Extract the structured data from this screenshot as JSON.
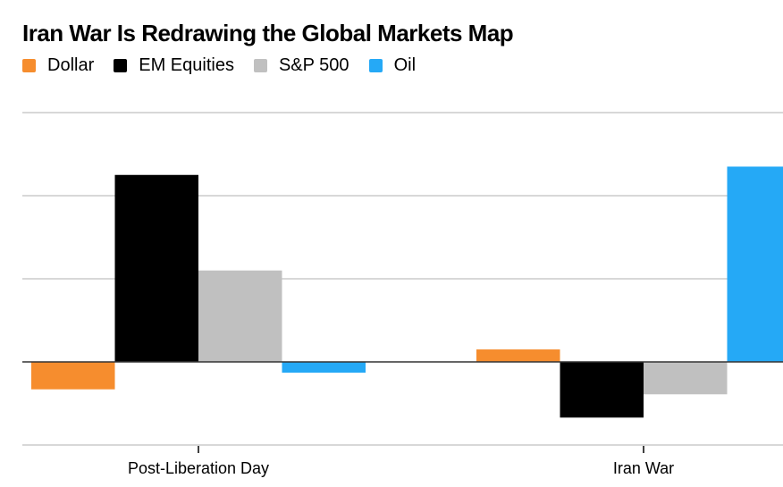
{
  "chart_data": {
    "type": "bar",
    "title": "Iran War Is Redrawing the Global Markets Map",
    "xlabel": "",
    "ylabel": "",
    "categories": [
      "Post-Liberation Day",
      "Iran War"
    ],
    "series": [
      {
        "name": "Dollar",
        "color": "#f68d2e",
        "values": [
          -0.33,
          0.15
        ]
      },
      {
        "name": "EM Equities",
        "color": "#000000",
        "values": [
          2.25,
          -0.67
        ]
      },
      {
        "name": "S&P 500",
        "color": "#c0c0c0",
        "values": [
          1.1,
          -0.39
        ]
      },
      {
        "name": "Oil",
        "color": "#25a9f6",
        "values": [
          -0.13,
          2.35
        ]
      }
    ],
    "ylim": [
      -1,
      3
    ],
    "yticks": [
      -1,
      0,
      1,
      2,
      3
    ],
    "value_units": "relative gridline units (no y-axis labels shown)",
    "grid": true,
    "legend_position": "top-left"
  }
}
